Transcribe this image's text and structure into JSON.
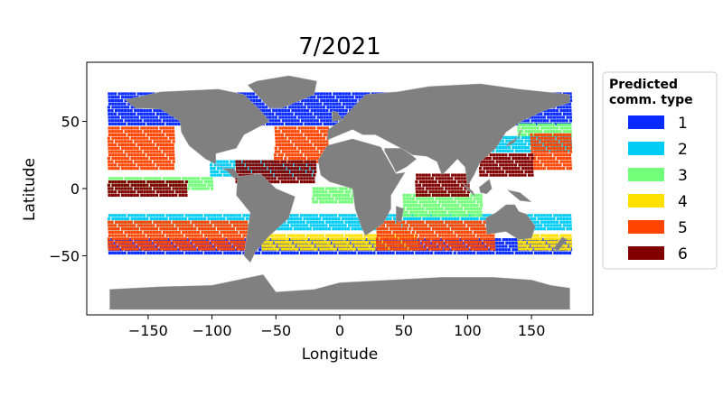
{
  "chart_data": {
    "type": "scatter",
    "title": "7/2021",
    "xlabel": "Longitude",
    "ylabel": "Latitude",
    "xlim": [
      -198,
      198
    ],
    "ylim": [
      -94,
      94
    ],
    "xticks": [
      -150,
      -100,
      -50,
      0,
      50,
      100,
      150
    ],
    "yticks": [
      -50,
      0,
      50
    ],
    "xtick_labels": [
      "−150",
      "−100",
      "−50",
      "0",
      "50",
      "100",
      "150"
    ],
    "ytick_labels": [
      "−50",
      "0",
      "50"
    ],
    "grid": false,
    "legend": {
      "title_lines": [
        "Predicted",
        "comm. type"
      ],
      "placement": "outside-right",
      "entries": [
        {
          "label": "1",
          "color": "#0a2bff"
        },
        {
          "label": "2",
          "color": "#00ccf5"
        },
        {
          "label": "3",
          "color": "#72ff7a"
        },
        {
          "label": "4",
          "color": "#ffe100"
        },
        {
          "label": "5",
          "color": "#ff4500"
        },
        {
          "label": "6",
          "color": "#800000"
        }
      ]
    },
    "land_color": "#808080",
    "series": [
      {
        "name": "1",
        "color": "#0a2bff",
        "bands": [
          {
            "lat": [
              48,
              72
            ],
            "lon": [
              -180,
              180
            ]
          },
          {
            "lat": [
              -48,
              -36
            ],
            "lon": [
              -180,
              180
            ]
          }
        ]
      },
      {
        "name": "2",
        "color": "#00ccf5",
        "bands": [
          {
            "lat": [
              -30,
              -18
            ],
            "lon": [
              -180,
              180
            ]
          },
          {
            "lat": [
              10,
              22
            ],
            "lon": [
              -100,
              -20
            ]
          },
          {
            "lat": [
              28,
              40
            ],
            "lon": [
              120,
              180
            ]
          }
        ]
      },
      {
        "name": "3",
        "color": "#72ff7a",
        "bands": [
          {
            "lat": [
              0,
              8
            ],
            "lon": [
              -180,
              -100
            ]
          },
          {
            "lat": [
              -10,
              0
            ],
            "lon": [
              -20,
              10
            ]
          },
          {
            "lat": [
              -20,
              -5
            ],
            "lon": [
              50,
              110
            ]
          },
          {
            "lat": [
              40,
              48
            ],
            "lon": [
              140,
              180
            ]
          }
        ]
      },
      {
        "name": "4",
        "color": "#ffe100",
        "bands": [
          {
            "lat": [
              -45,
              -35
            ],
            "lon": [
              -60,
              60
            ]
          },
          {
            "lat": [
              -45,
              -35
            ],
            "lon": [
              140,
              180
            ]
          }
        ]
      },
      {
        "name": "5",
        "color": "#ff4500",
        "bands": [
          {
            "lat": [
              -45,
              -25
            ],
            "lon": [
              -180,
              -70
            ]
          },
          {
            "lat": [
              -45,
              -25
            ],
            "lon": [
              30,
              120
            ]
          },
          {
            "lat": [
              15,
              45
            ],
            "lon": [
              -180,
              -130
            ]
          },
          {
            "lat": [
              20,
              45
            ],
            "lon": [
              -50,
              -10
            ]
          },
          {
            "lat": [
              15,
              40
            ],
            "lon": [
              150,
              180
            ]
          }
        ]
      },
      {
        "name": "6",
        "color": "#800000",
        "bands": [
          {
            "lat": [
              -5,
              5
            ],
            "lon": [
              -180,
              -120
            ]
          },
          {
            "lat": [
              5,
              20
            ],
            "lon": [
              -80,
              -20
            ]
          },
          {
            "lat": [
              -5,
              10
            ],
            "lon": [
              60,
              100
            ]
          },
          {
            "lat": [
              10,
              25
            ],
            "lon": [
              110,
              150
            ]
          }
        ]
      }
    ]
  }
}
